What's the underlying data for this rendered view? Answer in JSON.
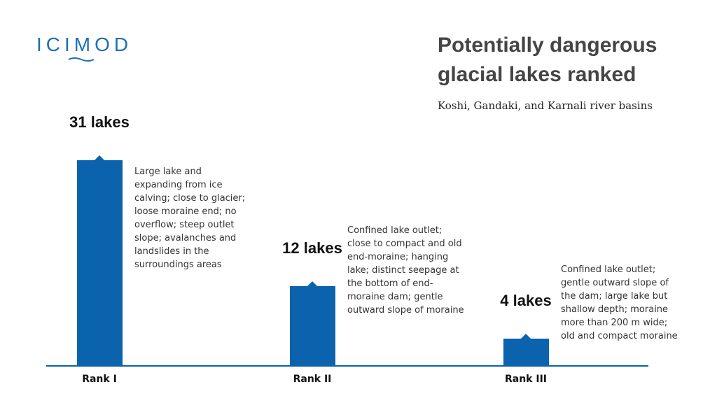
{
  "logo": "ICIMOD",
  "chart_data": {
    "type": "bar",
    "title": "Potentially dangerous glacial lakes ranked",
    "subtitle": "Koshi, Gandaki, and Karnali river basins",
    "categories": [
      "Rank I",
      "Rank II",
      "Rank III"
    ],
    "values": [
      31,
      12,
      4
    ],
    "value_labels": [
      "31 lakes",
      "12 lakes",
      "4 lakes"
    ],
    "annotations": [
      "Large lake and expanding from ice calving; close to glacier; loose moraine end; no overflow; steep outlet slope; avalanches and landslides in the surroundings areas",
      "Confined lake outlet; close to compact and old end-moraine; hanging lake; distinct seepage at the bottom of end-moraine dam; gentle outward slope of moraine",
      "Confined lake outlet; gentle outward slope of the dam; large lake but shallow depth; moraine more than 200 m wide; old and compact moraine"
    ],
    "color": "#0b62ad"
  }
}
